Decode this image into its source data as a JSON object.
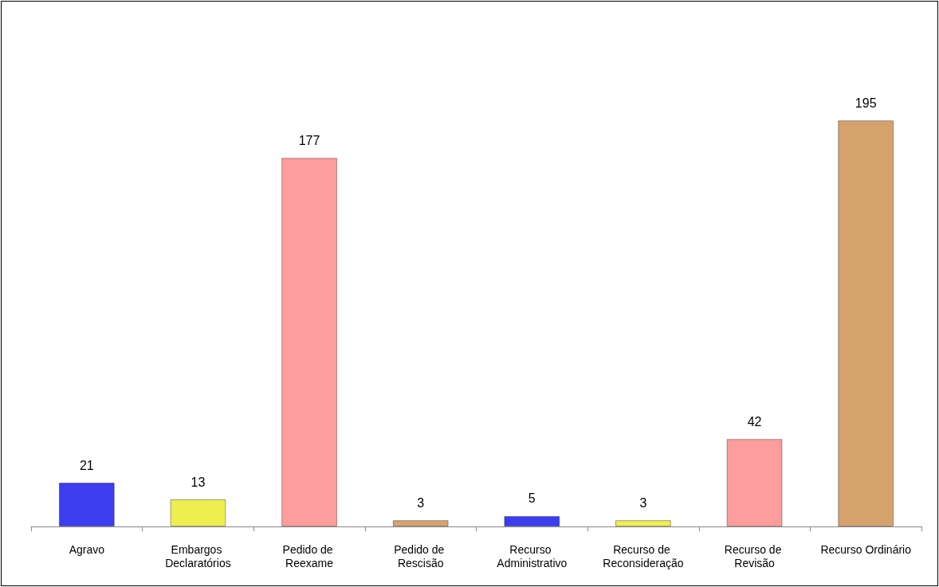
{
  "chart_data": {
    "type": "bar",
    "categories": [
      "Agravo",
      "Embargos Declaratórios",
      "Pedido de Reexame",
      "Pedido de Rescisão",
      "Recurso Administrativo",
      "Recurso de Reconsideração",
      "Recurso de Revisão",
      "Recurso Ordinário"
    ],
    "values": [
      21,
      13,
      177,
      3,
      5,
      3,
      42,
      195
    ],
    "colors": [
      "#3c3cf0",
      "#eeee50",
      "#ff9c9c",
      "#d6a26c",
      "#3c3cf0",
      "#eeee50",
      "#ff9c9c",
      "#d6a26c"
    ],
    "data_labels": true,
    "grid": false
  }
}
